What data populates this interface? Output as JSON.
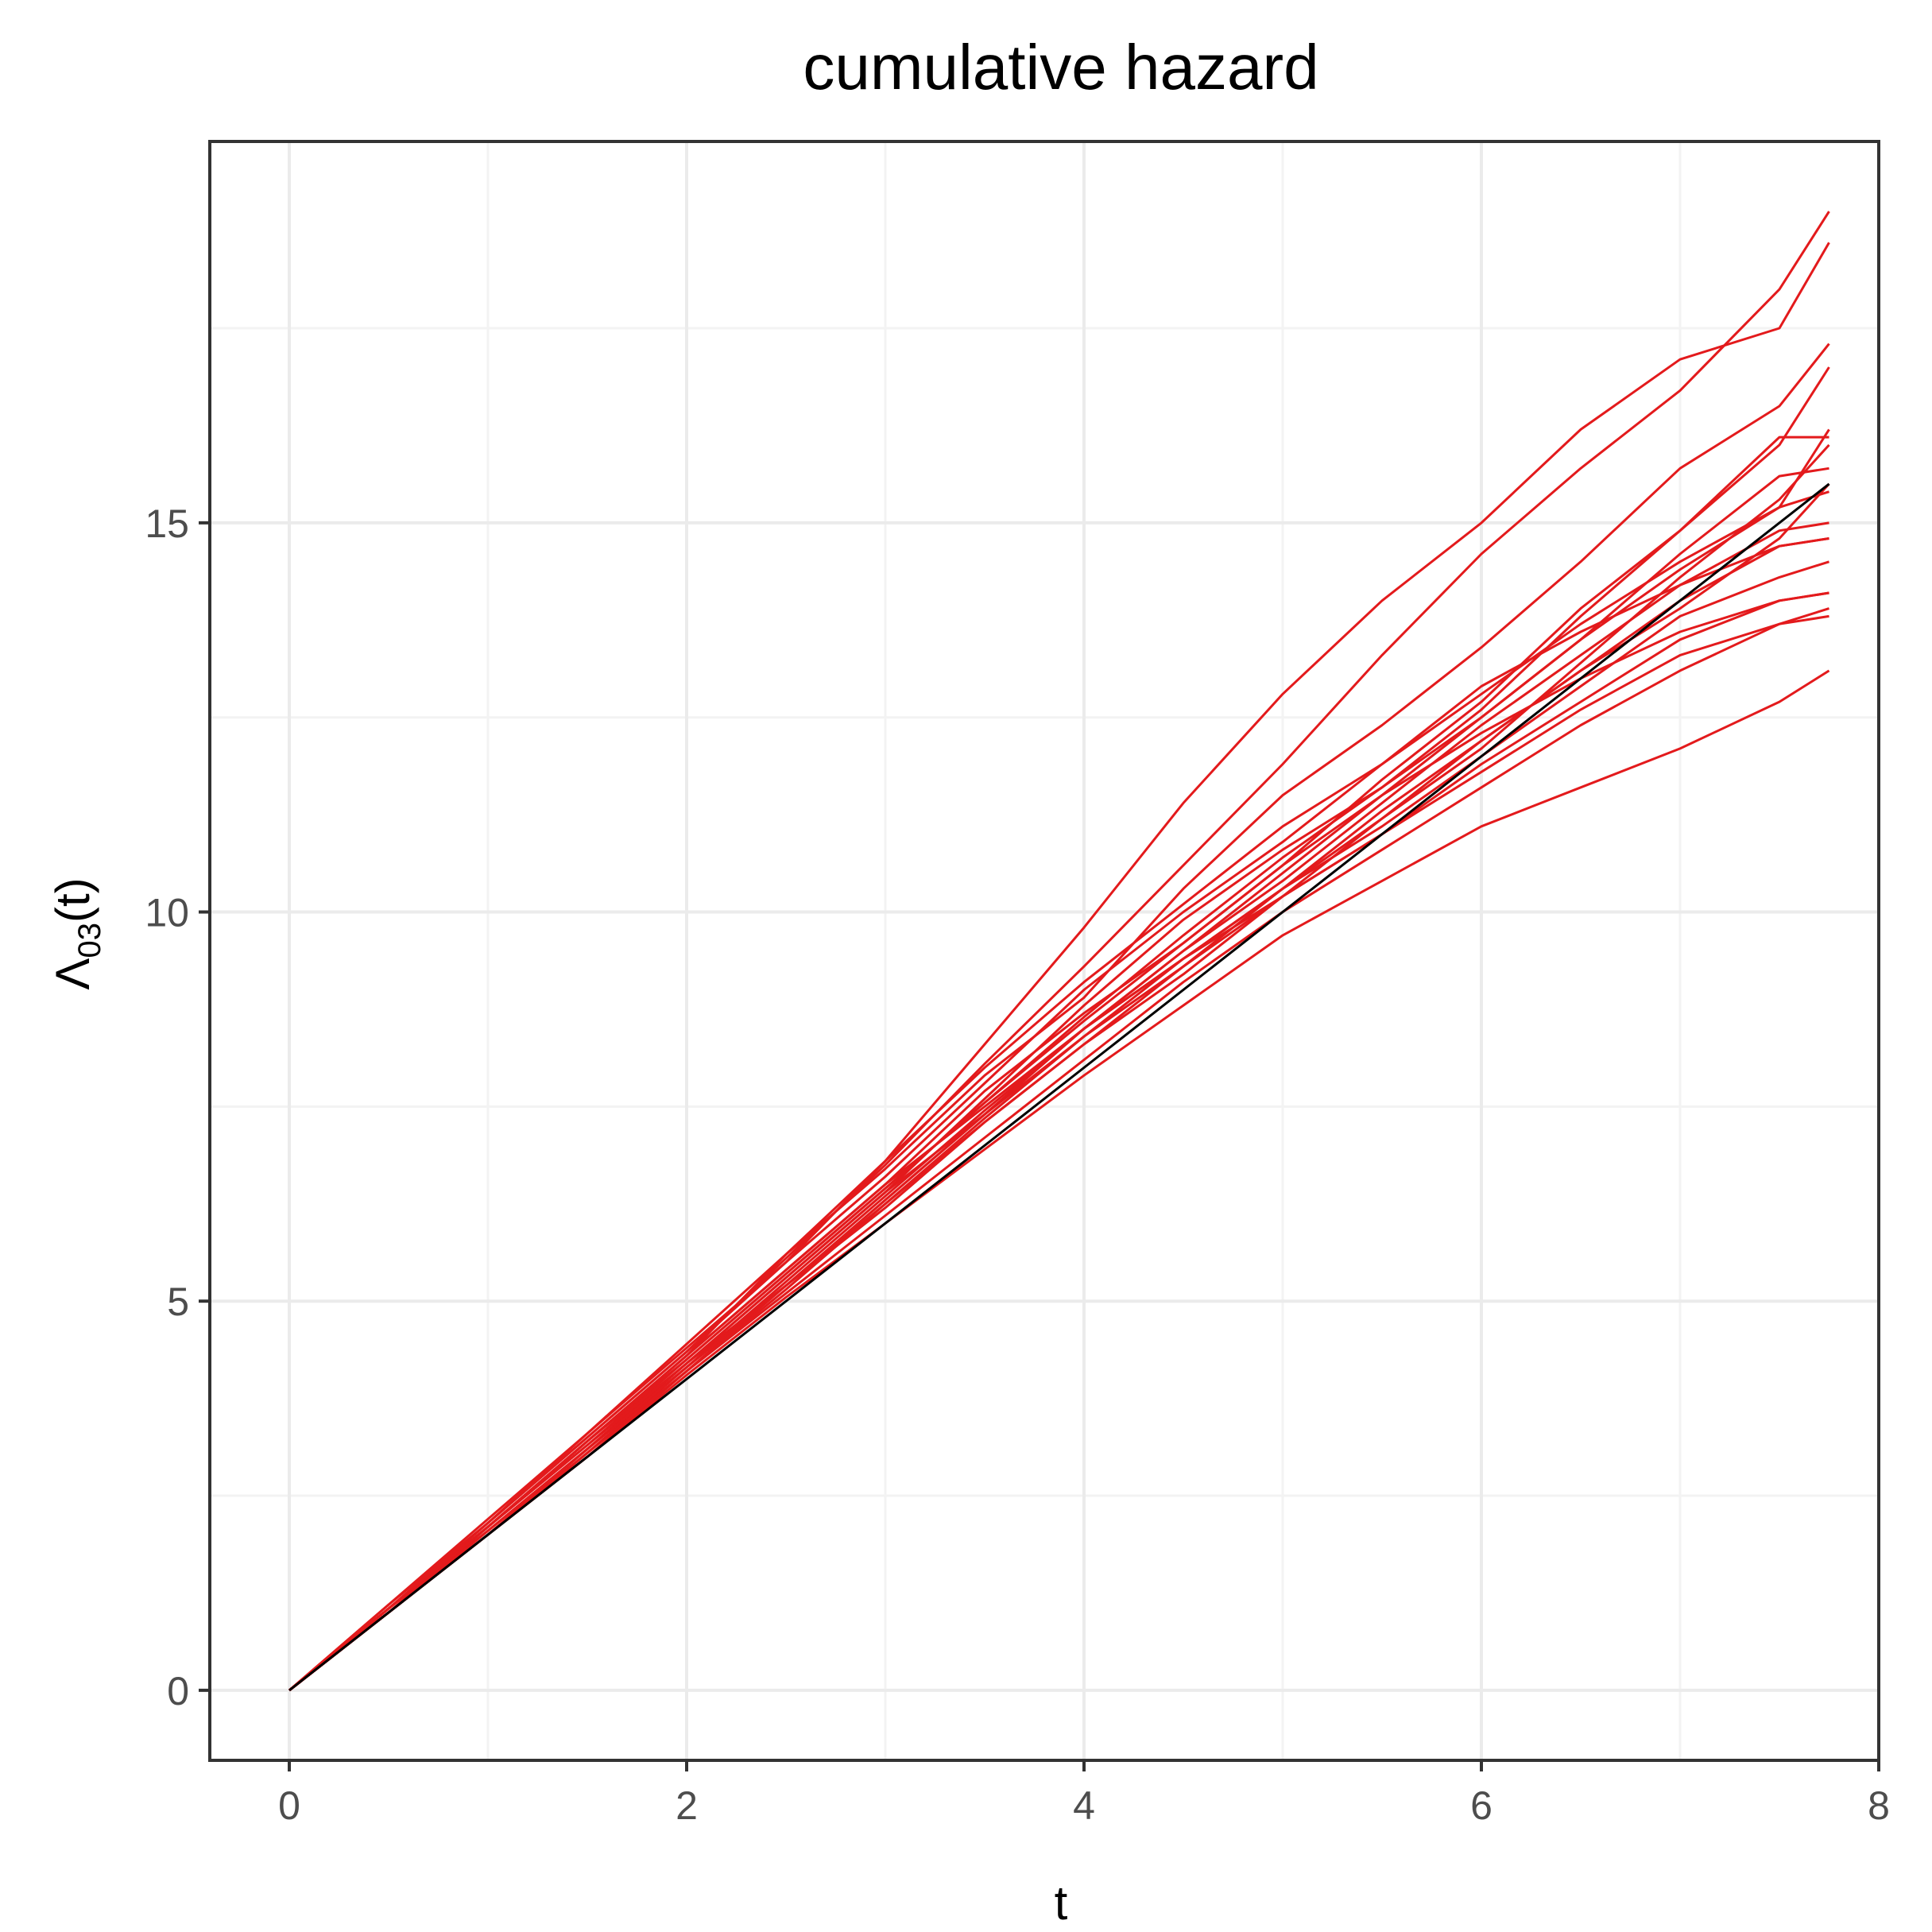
{
  "chart_data": {
    "type": "line",
    "title": "cumulative hazard",
    "xlabel": "t",
    "ylabel": {
      "main": "Λ",
      "sub": "03",
      "suffix": "(t)"
    },
    "xlim": [
      -0.4,
      8.0
    ],
    "ylim": [
      -0.9,
      19.9
    ],
    "x_ticks": [
      0,
      2,
      4,
      6,
      8
    ],
    "y_ticks": [
      0,
      5,
      10,
      15
    ],
    "x_tick_labels": [
      "0",
      "2",
      "4",
      "6",
      "8"
    ],
    "y_tick_labels": [
      "0",
      "5",
      "10",
      "15"
    ],
    "grid": true,
    "legend": "none",
    "colors": {
      "true_line": "#000000",
      "simulated": "#e31a1c"
    },
    "series": [
      {
        "role": "true",
        "x": [
          0,
          7.75
        ],
        "y": [
          0,
          15.5
        ]
      },
      {
        "role": "simulation",
        "x": [
          0,
          0.5,
          1,
          1.5,
          2,
          2.5,
          3,
          3.5,
          4,
          4.5,
          5,
          5.5,
          6,
          6.5,
          7,
          7.5,
          7.75
        ],
        "y": [
          0,
          1.05,
          2.15,
          3.25,
          4.35,
          5.55,
          6.75,
          8.05,
          9.3,
          10.6,
          11.9,
          13.3,
          14.6,
          15.7,
          16.7,
          18.0,
          19.0
        ]
      },
      {
        "role": "simulation",
        "x": [
          0,
          0.5,
          1,
          1.5,
          2,
          2.5,
          3,
          3.5,
          4,
          4.5,
          5,
          5.5,
          6,
          6.5,
          7,
          7.5,
          7.75
        ],
        "y": [
          0,
          1.1,
          2.2,
          3.3,
          4.4,
          5.5,
          6.8,
          8.3,
          9.8,
          11.4,
          12.8,
          14.0,
          15.0,
          16.2,
          17.1,
          17.5,
          18.6
        ]
      },
      {
        "role": "simulation",
        "x": [
          0,
          0.5,
          1,
          1.5,
          2,
          2.5,
          3,
          3.5,
          4,
          4.5,
          5,
          5.5,
          6,
          6.5,
          7,
          7.5,
          7.75
        ],
        "y": [
          0,
          1.0,
          2.1,
          3.2,
          4.3,
          5.6,
          6.7,
          7.9,
          8.9,
          10.3,
          11.5,
          12.4,
          13.4,
          14.5,
          15.7,
          16.5,
          17.3
        ]
      },
      {
        "role": "simulation",
        "x": [
          0,
          0.5,
          1,
          1.5,
          2,
          2.5,
          3,
          3.5,
          4,
          4.5,
          5,
          5.5,
          6,
          6.5,
          7,
          7.5,
          7.75
        ],
        "y": [
          0,
          1.05,
          2.05,
          3.1,
          4.2,
          5.3,
          6.4,
          7.6,
          8.8,
          9.9,
          10.8,
          11.6,
          12.6,
          13.8,
          14.9,
          16.0,
          17.0
        ]
      },
      {
        "role": "simulation",
        "x": [
          0,
          0.5,
          1,
          1.5,
          2,
          2.5,
          3,
          3.5,
          4,
          4.5,
          5,
          5.5,
          6,
          6.5,
          7,
          7.5,
          7.75
        ],
        "y": [
          0,
          1.05,
          2.1,
          3.2,
          4.3,
          5.4,
          6.5,
          7.7,
          8.7,
          9.6,
          10.6,
          11.7,
          12.7,
          13.9,
          14.9,
          16.1,
          16.1
        ]
      },
      {
        "role": "simulation",
        "x": [
          0,
          0.5,
          1,
          1.5,
          2,
          2.5,
          3,
          3.5,
          4,
          4.5,
          5,
          5.5,
          6,
          6.5,
          7,
          7.5,
          7.75
        ],
        "y": [
          0,
          1.0,
          2.0,
          3.1,
          4.2,
          5.2,
          6.3,
          7.4,
          8.5,
          9.5,
          10.5,
          11.5,
          12.5,
          13.5,
          14.6,
          15.6,
          15.7
        ]
      },
      {
        "role": "simulation",
        "x": [
          0,
          0.5,
          1,
          1.5,
          2,
          2.5,
          3,
          3.5,
          4,
          4.5,
          5,
          5.5,
          6,
          6.5,
          7,
          7.5,
          7.75
        ],
        "y": [
          0,
          1.05,
          2.1,
          3.15,
          4.25,
          5.35,
          6.45,
          7.55,
          8.65,
          9.7,
          10.7,
          11.6,
          12.5,
          13.5,
          14.4,
          15.2,
          15.4
        ]
      },
      {
        "role": "simulation",
        "x": [
          0,
          0.5,
          1,
          1.5,
          2,
          2.5,
          3,
          3.5,
          4,
          4.5,
          5,
          5.5,
          6,
          6.5,
          7,
          7.5,
          7.75
        ],
        "y": [
          0,
          1.0,
          2.0,
          3.05,
          4.15,
          5.25,
          6.35,
          7.45,
          8.5,
          9.5,
          10.4,
          11.4,
          12.4,
          13.3,
          14.2,
          14.9,
          15.0
        ]
      },
      {
        "role": "simulation",
        "x": [
          0,
          0.5,
          1,
          1.5,
          2,
          2.5,
          3,
          3.5,
          4,
          4.5,
          5,
          5.5,
          6,
          6.5,
          7,
          7.5,
          7.75
        ],
        "y": [
          0,
          1.0,
          2.05,
          3.1,
          4.15,
          5.2,
          6.25,
          7.3,
          8.3,
          9.3,
          10.3,
          11.3,
          12.2,
          13.1,
          14.0,
          14.7,
          14.8
        ]
      },
      {
        "role": "simulation",
        "x": [
          0,
          0.5,
          1,
          1.5,
          2,
          2.5,
          3,
          3.5,
          4,
          4.5,
          5,
          5.5,
          6,
          6.5,
          7,
          7.5,
          7.75
        ],
        "y": [
          0,
          1.05,
          2.1,
          3.2,
          4.3,
          5.4,
          6.5,
          7.5,
          8.5,
          9.4,
          10.3,
          11.1,
          12.0,
          12.9,
          13.8,
          14.3,
          14.5
        ]
      },
      {
        "role": "simulation",
        "x": [
          0,
          0.5,
          1,
          1.5,
          2,
          2.5,
          3,
          3.5,
          4,
          4.5,
          5,
          5.5,
          6,
          6.5,
          7,
          7.5,
          7.75
        ],
        "y": [
          0,
          1.0,
          2.0,
          3.0,
          4.1,
          5.2,
          6.2,
          7.3,
          8.3,
          9.2,
          10.2,
          11.0,
          11.9,
          12.7,
          13.5,
          14.0,
          14.1
        ]
      },
      {
        "role": "simulation",
        "x": [
          0,
          0.5,
          1,
          1.5,
          2,
          2.5,
          3,
          3.5,
          4,
          4.5,
          5,
          5.5,
          6,
          6.5,
          7,
          7.5,
          7.75
        ],
        "y": [
          0,
          1.0,
          2.0,
          3.05,
          4.1,
          5.1,
          6.1,
          7.1,
          8.1,
          9.1,
          10.0,
          10.8,
          11.6,
          12.4,
          13.1,
          13.7,
          13.9
        ]
      },
      {
        "role": "simulation",
        "x": [
          0,
          0.5,
          1,
          1.5,
          2,
          2.5,
          3,
          3.5,
          4,
          4.5,
          5,
          5.5,
          6,
          6.5,
          7,
          7.5,
          7.75
        ],
        "y": [
          0,
          1.0,
          2.0,
          3.0,
          4.05,
          5.05,
          6.0,
          6.95,
          7.9,
          8.8,
          9.7,
          10.4,
          11.1,
          11.6,
          12.1,
          12.7,
          13.1
        ]
      },
      {
        "role": "simulation",
        "x": [
          0,
          0.5,
          1,
          1.5,
          2,
          2.5,
          3,
          3.5,
          4,
          4.5,
          5,
          5.5,
          6,
          6.5,
          7,
          7.5,
          7.75
        ],
        "y": [
          0,
          1.05,
          2.1,
          3.15,
          4.2,
          5.3,
          6.4,
          7.4,
          8.4,
          9.3,
          10.2,
          11.2,
          12.2,
          13.1,
          13.9,
          14.8,
          15.5
        ]
      },
      {
        "role": "simulation",
        "x": [
          0,
          0.5,
          1,
          1.5,
          2,
          2.5,
          3,
          3.5,
          4,
          4.5,
          5,
          5.5,
          6,
          6.5,
          7,
          7.5,
          7.75
        ],
        "y": [
          0,
          1.1,
          2.15,
          3.25,
          4.35,
          5.5,
          6.6,
          7.8,
          9.0,
          10.0,
          10.9,
          11.9,
          12.9,
          13.6,
          14.2,
          14.7,
          14.8
        ]
      },
      {
        "role": "simulation",
        "x": [
          0,
          0.5,
          1,
          1.5,
          2,
          2.5,
          3,
          3.5,
          4,
          4.5,
          5,
          5.5,
          6,
          6.5,
          7,
          7.5,
          7.75
        ],
        "y": [
          0,
          1.0,
          2.05,
          3.1,
          4.15,
          5.2,
          6.3,
          7.4,
          8.5,
          9.4,
          10.2,
          11.0,
          11.8,
          12.6,
          13.3,
          13.7,
          13.8
        ]
      },
      {
        "role": "simulation",
        "x": [
          0,
          0.5,
          1,
          1.5,
          2,
          2.5,
          3,
          3.5,
          4,
          4.5,
          5,
          5.5,
          6,
          6.5,
          7,
          7.5,
          7.75
        ],
        "y": [
          0,
          1.05,
          2.1,
          3.2,
          4.25,
          5.35,
          6.45,
          7.55,
          8.6,
          9.6,
          10.6,
          11.5,
          12.3,
          13.0,
          13.6,
          14.0,
          14.1
        ]
      },
      {
        "role": "simulation",
        "x": [
          0,
          0.5,
          1,
          1.5,
          2,
          2.5,
          3,
          3.5,
          4,
          4.5,
          5,
          5.5,
          6,
          6.5,
          7,
          7.5,
          7.75
        ],
        "y": [
          0,
          1.05,
          2.15,
          3.3,
          4.45,
          5.6,
          6.8,
          8.0,
          9.1,
          10.1,
          11.1,
          11.9,
          12.8,
          13.7,
          14.5,
          15.2,
          16.2
        ]
      },
      {
        "role": "simulation",
        "x": [
          0,
          0.5,
          1,
          1.5,
          2,
          2.5,
          3,
          3.5,
          4,
          4.5,
          5,
          5.5,
          6,
          6.5,
          7,
          7.5,
          7.75
        ],
        "y": [
          0,
          1.0,
          2.0,
          3.05,
          4.1,
          5.15,
          6.25,
          7.35,
          8.4,
          9.4,
          10.3,
          11.2,
          12.1,
          13.2,
          14.3,
          15.3,
          16.0
        ]
      }
    ]
  }
}
